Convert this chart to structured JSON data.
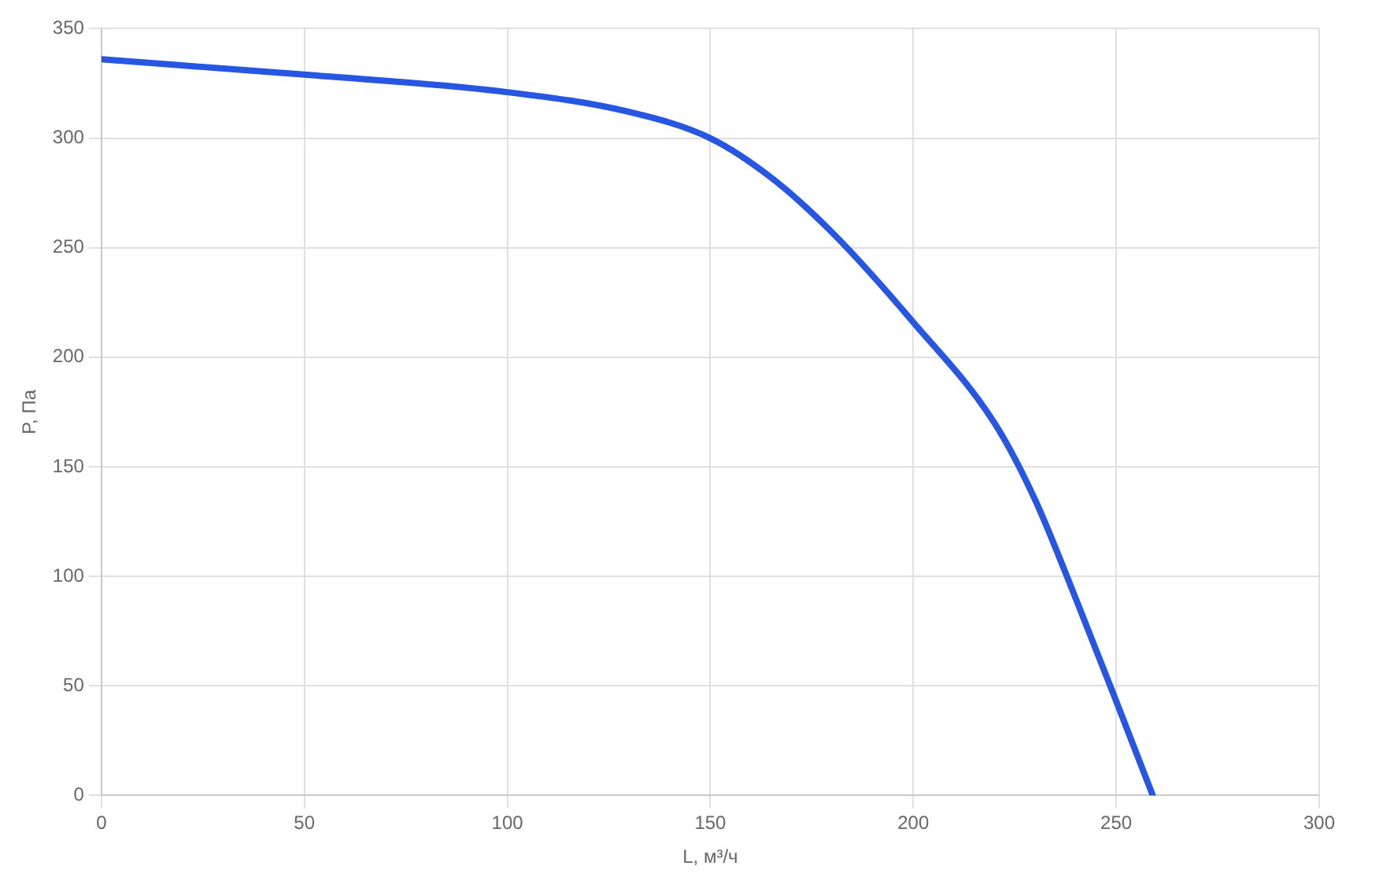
{
  "chart_data": {
    "type": "line",
    "xlabel": "L, м³/ч",
    "ylabel": "P, Па",
    "x": [
      0,
      50,
      100,
      130,
      150,
      165,
      180,
      200,
      220,
      230,
      240,
      250,
      259
    ],
    "series": [
      {
        "color": "#2756e3",
        "values": [
          336,
          329,
          321,
          312,
          300,
          282,
          257,
          216,
          170,
          135,
          90,
          43,
          0
        ]
      }
    ],
    "xlim": [
      0,
      300
    ],
    "xticks": [
      0,
      50,
      100,
      150,
      200,
      250,
      300
    ],
    "ylim": [
      0,
      350
    ],
    "yticks": [
      0,
      50,
      100,
      150,
      200,
      250,
      300,
      350
    ],
    "grid": true,
    "legend": false,
    "marker": "none",
    "line_style": "solid"
  }
}
